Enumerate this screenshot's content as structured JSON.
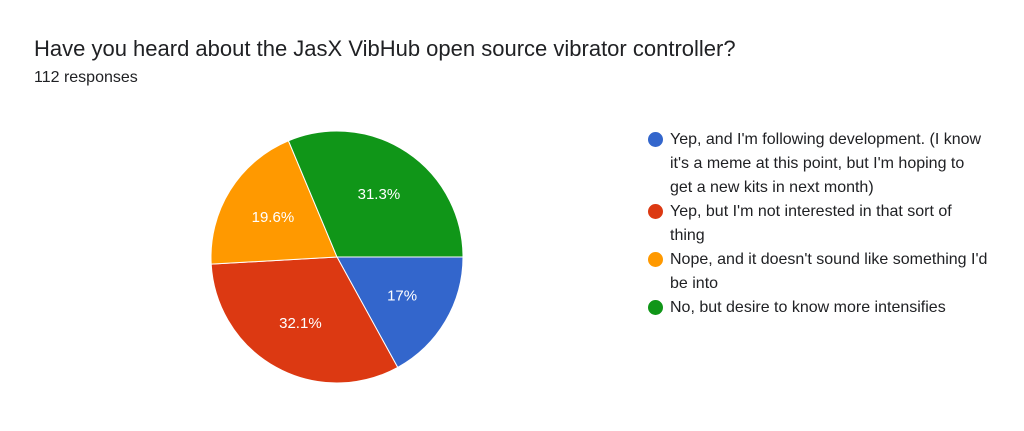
{
  "header": {
    "title": "Have you heard about the JasX VibHub open source vibrator controller?",
    "subtitle": "112 responses"
  },
  "chart_data": {
    "type": "pie",
    "title": "Have you heard about the JasX VibHub open source vibrator controller?",
    "subtitle": "112 responses",
    "start": "3 o'clock, clockwise",
    "legend_position": "right",
    "slices": [
      {
        "label": "Yep, and I'm following development. (I know it's a meme at this point, but I'm hoping to get a new kits in next month)",
        "value": 17.0,
        "display": "17%",
        "color": "#3366cc"
      },
      {
        "label": "Yep, but I'm not interested in that sort of thing",
        "value": 32.1,
        "display": "32.1%",
        "color": "#dc3912"
      },
      {
        "label": "Nope, and it doesn't sound like something I'd be into",
        "value": 19.6,
        "display": "19.6%",
        "color": "#ff9900"
      },
      {
        "label": "No, but desire to know more intensifies",
        "value": 31.3,
        "display": "31.3%",
        "color": "#109618"
      }
    ]
  }
}
